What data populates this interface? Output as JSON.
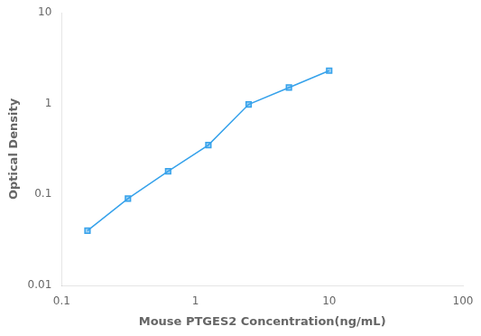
{
  "chart_data": {
    "type": "line",
    "x": [
      0.156,
      0.313,
      0.625,
      1.25,
      2.5,
      5.0,
      10.0
    ],
    "values": [
      0.04,
      0.09,
      0.18,
      0.35,
      0.98,
      1.5,
      2.3
    ],
    "xlabel": "Mouse PTGES2 Concentration(ng/mL)",
    "ylabel": "Optical Density",
    "xlim": [
      0.1,
      100
    ],
    "ylim": [
      0.01,
      10
    ],
    "xticks": [
      0.1,
      1,
      10,
      100
    ],
    "yticks": [
      0.01,
      0.1,
      1,
      10
    ],
    "log": true,
    "grid": false,
    "marker": "square"
  }
}
